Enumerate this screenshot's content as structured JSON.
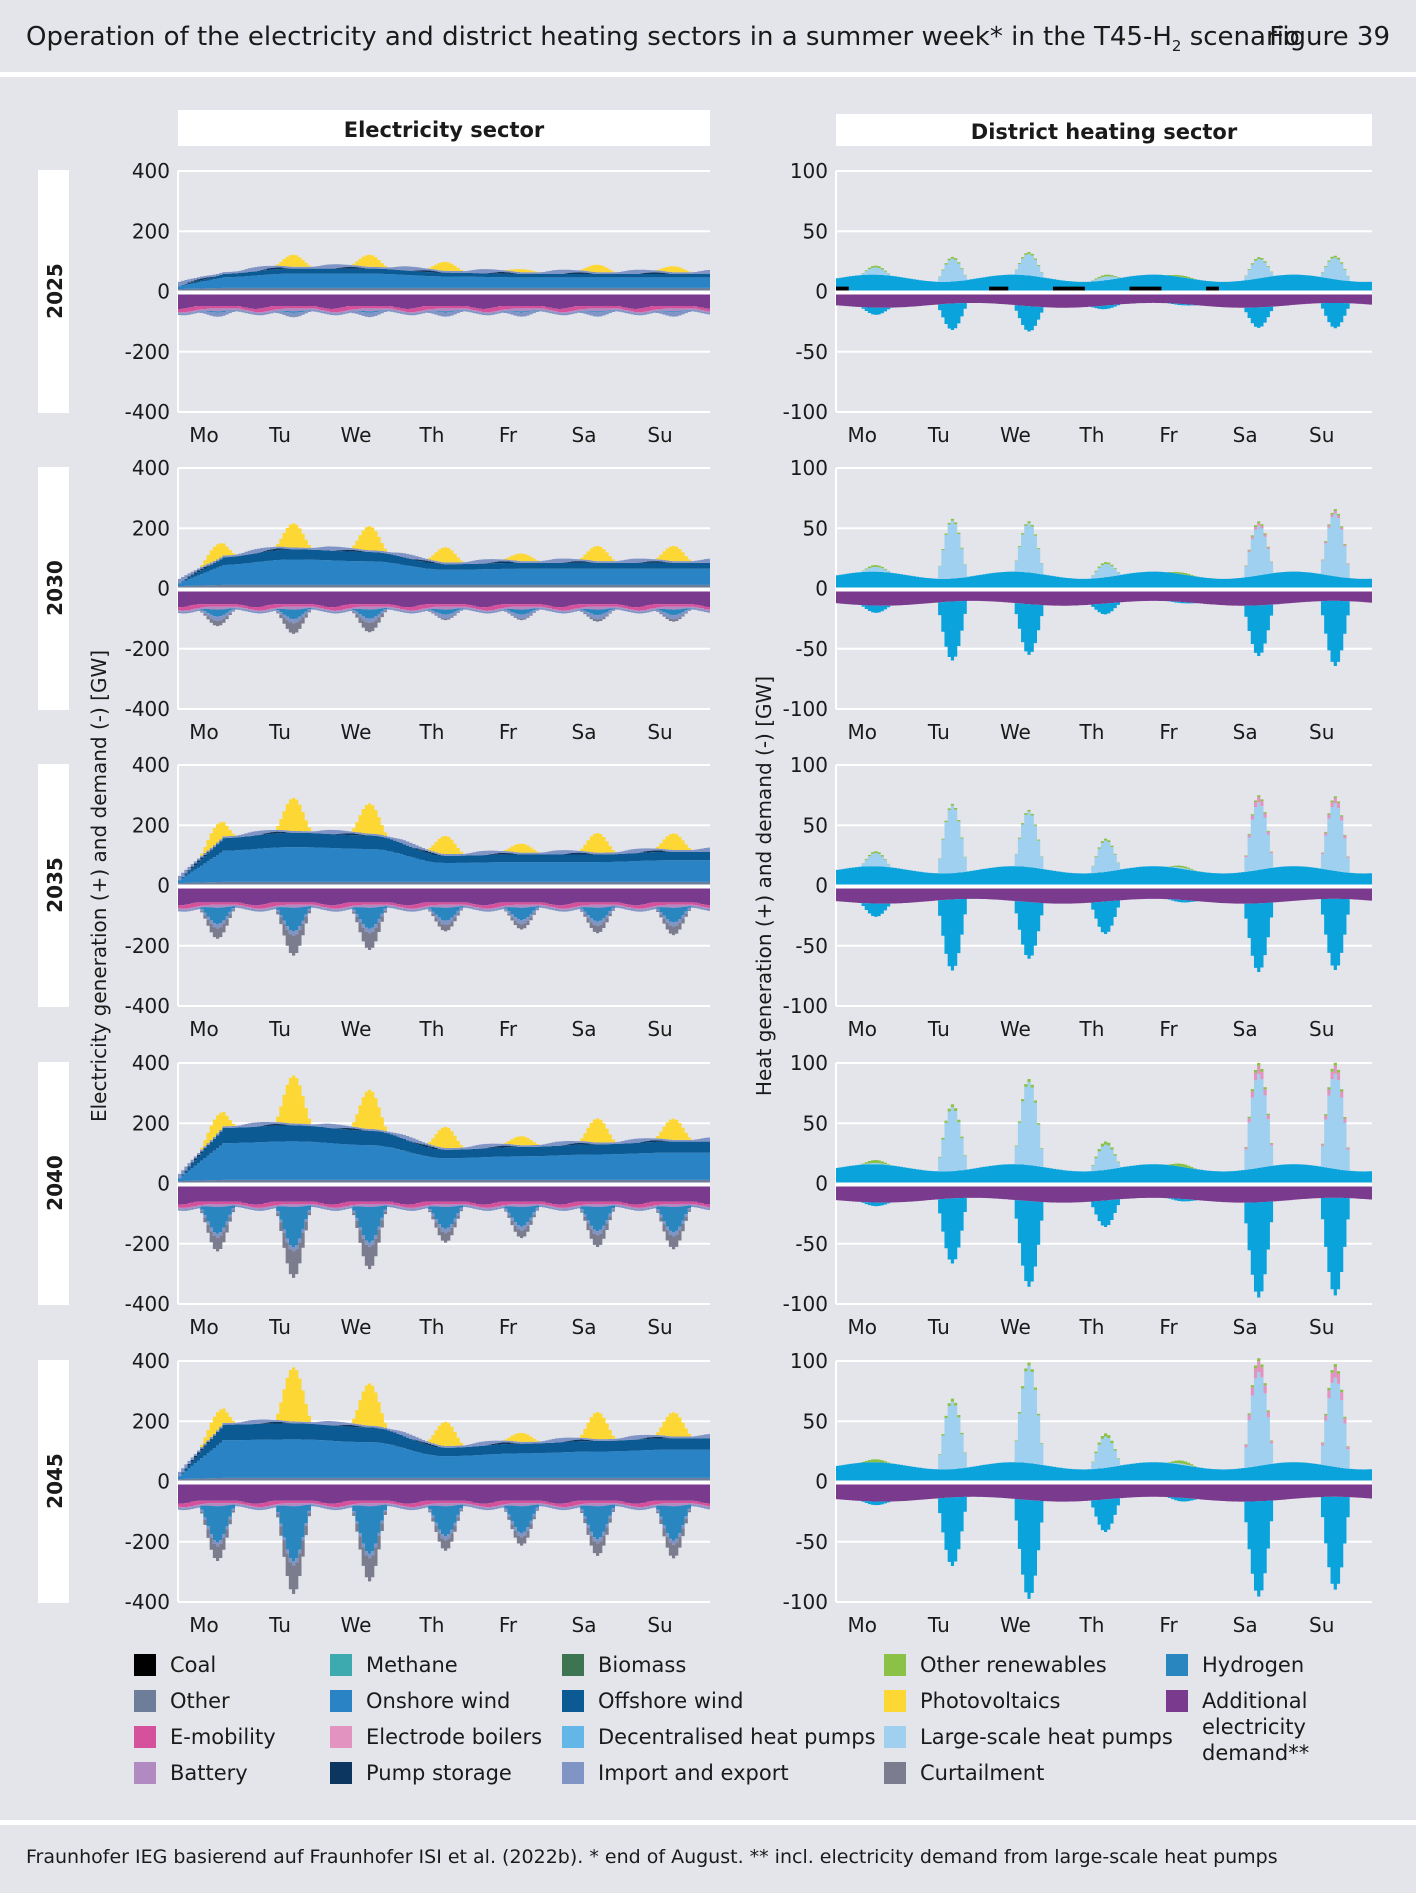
{
  "header": {
    "title_main": "Operation of the electricity and district heating sectors in a summer week* in the T45-H",
    "title_sub": "2",
    "title_end": " scenario",
    "figure": "Figure 39"
  },
  "panels": {
    "electricity": "Electricity sector",
    "heat": "District heating sector"
  },
  "ylabels": {
    "electricity": "Electricity generation (+) and demand (-) [GW]",
    "heat": "Heat generation (+) and demand (-) [GW]"
  },
  "years": [
    "2025",
    "2030",
    "2035",
    "2040",
    "2045"
  ],
  "days": [
    "Mo",
    "Tu",
    "We",
    "Th",
    "Fr",
    "Sa",
    "Su"
  ],
  "colors": {
    "coal": "#000000",
    "other": "#6d7d9a",
    "emobility": "#d6519c",
    "battery": "#b08ac0",
    "methane": "#3daab0",
    "onshore": "#2a83c5",
    "electrode": "#e393c0",
    "pumpstorage": "#0c365f",
    "biomass": "#3d7552",
    "offshore": "#0b5a93",
    "dechp": "#62b7e8",
    "imex": "#8094c6",
    "otherren": "#8cc148",
    "pv": "#fdd835",
    "lshp": "#9fd0f0",
    "curtail": "#7b7d8e",
    "hydrogen": "#2a86bf",
    "adddemand": "#7a3b8f",
    "heatpump_blue": "#0aa3dc"
  },
  "legend": [
    {
      "key": "coal",
      "label": "Coal"
    },
    {
      "key": "other",
      "label": "Other"
    },
    {
      "key": "emobility",
      "label": "E-mobility"
    },
    {
      "key": "battery",
      "label": "Battery"
    },
    {
      "key": "methane",
      "label": "Methane"
    },
    {
      "key": "onshore",
      "label": "Onshore wind"
    },
    {
      "key": "electrode",
      "label": "Electrode boilers"
    },
    {
      "key": "pumpstorage",
      "label": "Pump storage"
    },
    {
      "key": "biomass",
      "label": "Biomass"
    },
    {
      "key": "offshore",
      "label": "Offshore wind"
    },
    {
      "key": "dechp",
      "label": "Decentralised heat pumps"
    },
    {
      "key": "imex",
      "label": "Import and export"
    },
    {
      "key": "otherren",
      "label": "Other renewables"
    },
    {
      "key": "pv",
      "label": "Photovoltaics"
    },
    {
      "key": "lshp",
      "label": "Large-scale heat pumps"
    },
    {
      "key": "curtail",
      "label": "Curtailment"
    },
    {
      "key": "hydrogen",
      "label": "Hydrogen"
    },
    {
      "key": "adddemand",
      "label": "Additional electricity demand**"
    }
  ],
  "source": "Fraunhofer IEG basierend auf Fraunhofer ISI et al. (2022b). * end of August. ** incl. electricity demand from large-scale heat pumps",
  "chart_data": [
    {
      "type": "area",
      "panel": "Electricity sector",
      "ylim": [
        -400,
        400
      ],
      "yticks": [
        -400,
        -200,
        0,
        200,
        400
      ],
      "categories": [
        "Mo",
        "Tu",
        "We",
        "Th",
        "Fr",
        "Sa",
        "Su"
      ],
      "rows": [
        {
          "year": "2025",
          "pv_peak": [
            0,
            40,
            40,
            30,
            10,
            25,
            20
          ],
          "wind": [
            40,
            60,
            60,
            45,
            40,
            40,
            40
          ],
          "demand_min": [
            -90,
            -110,
            -105,
            -80,
            -80,
            -75,
            -75
          ]
        },
        {
          "year": "2030",
          "pv_peak": [
            50,
            80,
            80,
            50,
            25,
            50,
            50
          ],
          "wind": [
            90,
            120,
            110,
            65,
            70,
            70,
            70
          ],
          "demand_min": [
            -150,
            -200,
            -190,
            -110,
            -110,
            -120,
            -120
          ]
        },
        {
          "year": "2035",
          "pv_peak": [
            60,
            110,
            100,
            60,
            30,
            65,
            55
          ],
          "wind": [
            150,
            170,
            160,
            85,
            90,
            90,
            100
          ],
          "demand_min": [
            -200,
            -290,
            -260,
            -160,
            -150,
            -170,
            -180
          ]
        },
        {
          "year": "2040",
          "pv_peak": [
            60,
            160,
            130,
            70,
            30,
            80,
            70
          ],
          "wind": [
            180,
            190,
            170,
            100,
            110,
            120,
            130
          ],
          "demand_min": [
            -230,
            -350,
            -310,
            -190,
            -170,
            -210,
            -220
          ]
        },
        {
          "year": "2045",
          "pv_peak": [
            60,
            180,
            140,
            80,
            30,
            90,
            80
          ],
          "wind": [
            185,
            190,
            175,
            100,
            115,
            125,
            135
          ],
          "demand_min": [
            -240,
            -370,
            -320,
            -200,
            -180,
            -220,
            -230
          ]
        }
      ]
    },
    {
      "type": "area",
      "panel": "District heating sector",
      "ylim": [
        -100,
        100
      ],
      "yticks": [
        -100,
        -50,
        0,
        50,
        100
      ],
      "categories": [
        "Mo",
        "Tu",
        "We",
        "Th",
        "Fr",
        "Sa",
        "Su"
      ],
      "rows": [
        {
          "year": "2025",
          "peak": [
            20,
            33,
            32,
            17,
            12,
            30,
            32
          ],
          "demand_min": [
            -17,
            -33,
            -32,
            -14,
            -12,
            -28,
            -32
          ]
        },
        {
          "year": "2030",
          "peak": [
            18,
            62,
            55,
            25,
            12,
            55,
            66
          ],
          "demand_min": [
            -17,
            -60,
            -53,
            -20,
            -12,
            -53,
            -65
          ]
        },
        {
          "year": "2035",
          "peak": [
            25,
            70,
            60,
            40,
            15,
            70,
            70
          ],
          "demand_min": [
            -22,
            -70,
            -58,
            -38,
            -13,
            -68,
            -70
          ]
        },
        {
          "year": "2040",
          "peak": [
            15,
            67,
            83,
            35,
            14,
            92,
            93
          ],
          "demand_min": [
            -14,
            -65,
            -82,
            -33,
            -13,
            -90,
            -92
          ]
        },
        {
          "year": "2045",
          "peak": [
            14,
            70,
            95,
            40,
            15,
            92,
            88
          ],
          "demand_min": [
            -14,
            -68,
            -93,
            -38,
            -14,
            -90,
            -88
          ]
        }
      ]
    }
  ]
}
